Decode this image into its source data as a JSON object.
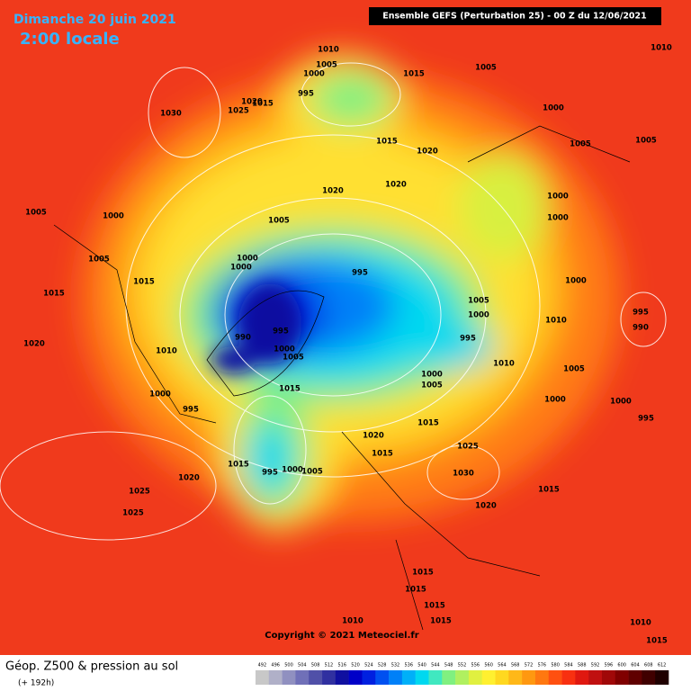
{
  "header": {
    "date": "Dimanche 20 juin 2021",
    "time": "2:00 locale",
    "model": "Ensemble GEFS  (Perturbation 25)  -  00 Z du 12/06/2021"
  },
  "footer": {
    "title": "Géop. Z500 & pression au sol",
    "lead": "(+ 192h)",
    "copyright": "Copyright © 2021 Meteociel.fr"
  },
  "color_scale": {
    "labels": [
      492,
      496,
      500,
      504,
      508,
      512,
      516,
      520,
      524,
      528,
      532,
      536,
      540,
      544,
      548,
      552,
      556,
      560,
      564,
      568,
      572,
      576,
      580,
      584,
      588,
      592,
      596,
      600,
      604,
      608,
      612
    ],
    "colors": [
      "#c8c8c8",
      "#b0b0c8",
      "#9090c0",
      "#7070b8",
      "#5050a8",
      "#3030a0",
      "#1010a0",
      "#0000c8",
      "#0020e0",
      "#0050f0",
      "#0080f8",
      "#00b0f8",
      "#00d8f0",
      "#40e8c0",
      "#80f080",
      "#b0f060",
      "#e0f040",
      "#fff030",
      "#ffd820",
      "#ffb818",
      "#ff9810",
      "#ff7810",
      "#ff5010",
      "#f83010",
      "#e01810",
      "#c01010",
      "#a00808",
      "#800000",
      "#600000",
      "#400000",
      "#200000"
    ]
  },
  "isobar_labels": [
    "1010",
    "1005",
    "1015",
    "1010",
    "1005",
    "1000",
    "995",
    "1030",
    "1020",
    "1025",
    "1015",
    "1015",
    "1020",
    "1000",
    "1005",
    "1005",
    "1020",
    "1020",
    "1000",
    "1000",
    "1005",
    "1005",
    "1000",
    "1005",
    "1000",
    "1000",
    "995",
    "1015",
    "1015",
    "1000",
    "1005",
    "1000",
    "1010",
    "995",
    "990",
    "995",
    "990",
    "995",
    "1020",
    "1010",
    "1000",
    "1005",
    "1010",
    "1005",
    "1000",
    "1005",
    "1015",
    "1000",
    "1000",
    "1000",
    "995",
    "995",
    "1015",
    "1020",
    "1025",
    "1015",
    "1015",
    "995",
    "1000",
    "1005",
    "1030",
    "1020",
    "1025",
    "1015",
    "1020",
    "1025",
    "1015",
    "1015",
    "1015",
    "1010",
    "1015",
    "1010",
    "1015"
  ]
}
